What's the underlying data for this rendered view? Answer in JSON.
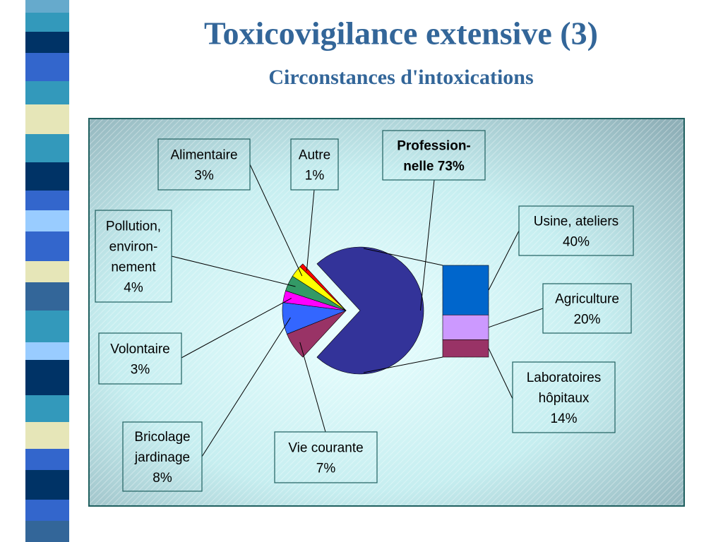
{
  "chart_data": {
    "type": "pie-of-bar",
    "title": "Toxicovigilance extensive (3)",
    "subtitle": "Circonstances d'intoxications",
    "pie": {
      "categories": [
        [
          "Profession-",
          "nelle"
        ],
        [
          "Vie courante"
        ],
        [
          "Bricolage",
          "jardinage"
        ],
        [
          "Volontaire"
        ],
        [
          "Pollution,",
          "environ-",
          "nement"
        ],
        [
          "Alimentaire"
        ],
        [
          "Autre"
        ]
      ],
      "values": [
        73,
        7,
        8,
        3,
        4,
        3,
        1
      ],
      "value_labels": [
        "73%",
        "7%",
        "8%",
        "3%",
        "4%",
        "3%",
        "1%"
      ],
      "colors": [
        "#333399",
        "#993366",
        "#3366ff",
        "#ff00ff",
        "#339966",
        "#ffff00",
        "#ff0000"
      ]
    },
    "bar": {
      "categories": [
        [
          "Usine, ateliers"
        ],
        [
          "Agriculture"
        ],
        [
          "Laboratoires",
          "hôpitaux"
        ]
      ],
      "values": [
        40,
        20,
        14
      ],
      "value_labels": [
        "40%",
        "20%",
        "14%"
      ],
      "colors": [
        "#0066cc",
        "#cc99ff",
        "#993366"
      ]
    }
  }
}
